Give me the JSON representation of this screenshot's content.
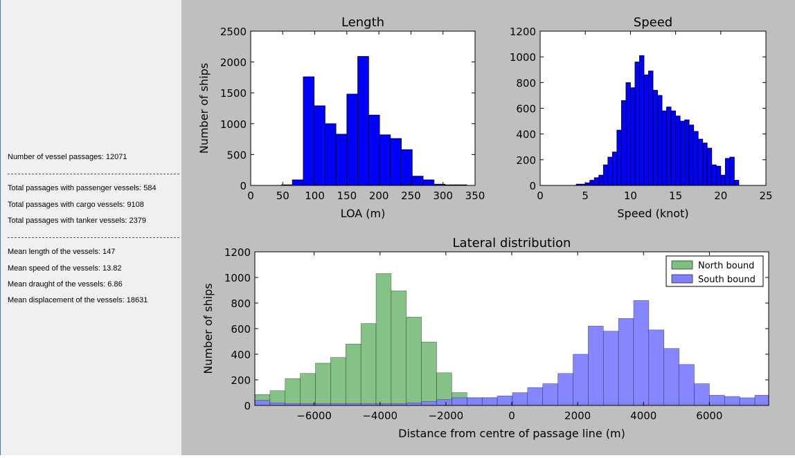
{
  "stats": {
    "passages": "Number of vessel passages: 12071",
    "separator_1": "------------------------------------------------",
    "passenger": "Total passages with passenger vessels: 584",
    "cargo": "Total passages with cargo vessels: 9108",
    "tanker": "Total passages with tanker vessels: 2379",
    "separator_2": "------------------------------------------------",
    "mean_length": "Mean length of the vessels: 147",
    "mean_speed": "Mean speed of the vessels: 13.82",
    "mean_draught": "Mean draught of the vessels: 6.86",
    "mean_displacement": "Mean displacement of the vessels: 18631"
  },
  "colors": {
    "bar_blue": "#0000ff",
    "north": "#7fbf7f",
    "south": "#7f7fff",
    "background": "#bfbfbf",
    "panel": "#f0f0f0"
  },
  "chart_data": [
    {
      "type": "bar",
      "title": "Length",
      "xlabel": "LOA (m)",
      "ylabel": "Number of ships",
      "xlim": [
        0,
        350
      ],
      "ylim": [
        0,
        2500
      ],
      "xticks": [
        0,
        50,
        100,
        150,
        200,
        250,
        300,
        350
      ],
      "yticks": [
        0,
        500,
        1000,
        1500,
        2000,
        2500
      ],
      "bin_width": 17,
      "bins": [
        {
          "x": 48,
          "value": 10
        },
        {
          "x": 65,
          "value": 90
        },
        {
          "x": 82,
          "value": 1760
        },
        {
          "x": 99,
          "value": 1290
        },
        {
          "x": 116,
          "value": 1000
        },
        {
          "x": 133,
          "value": 830
        },
        {
          "x": 150,
          "value": 1480
        },
        {
          "x": 167,
          "value": 2090
        },
        {
          "x": 184,
          "value": 1140
        },
        {
          "x": 201,
          "value": 820
        },
        {
          "x": 218,
          "value": 760
        },
        {
          "x": 235,
          "value": 580
        },
        {
          "x": 252,
          "value": 150
        },
        {
          "x": 269,
          "value": 90
        },
        {
          "x": 286,
          "value": 20
        },
        {
          "x": 303,
          "value": 10
        },
        {
          "x": 320,
          "value": 10
        }
      ],
      "grid": false
    },
    {
      "type": "bar",
      "title": "Speed",
      "xlabel": "Speed (knot)",
      "ylabel": "",
      "xlim": [
        0,
        25
      ],
      "ylim": [
        0,
        1200
      ],
      "xticks": [
        0,
        5,
        10,
        15,
        20,
        25
      ],
      "yticks": [
        0,
        200,
        400,
        600,
        800,
        1000,
        1200
      ],
      "bin_width": 0.5,
      "bins": [
        {
          "x": 4.0,
          "value": 10
        },
        {
          "x": 4.5,
          "value": 10
        },
        {
          "x": 5.0,
          "value": 20
        },
        {
          "x": 5.5,
          "value": 40
        },
        {
          "x": 6.0,
          "value": 60
        },
        {
          "x": 6.5,
          "value": 80
        },
        {
          "x": 7.0,
          "value": 160
        },
        {
          "x": 7.5,
          "value": 220
        },
        {
          "x": 8.0,
          "value": 260
        },
        {
          "x": 8.5,
          "value": 430
        },
        {
          "x": 9.0,
          "value": 660
        },
        {
          "x": 9.5,
          "value": 800
        },
        {
          "x": 10.0,
          "value": 760
        },
        {
          "x": 10.5,
          "value": 960
        },
        {
          "x": 11.0,
          "value": 1010
        },
        {
          "x": 11.5,
          "value": 860
        },
        {
          "x": 12.0,
          "value": 890
        },
        {
          "x": 12.5,
          "value": 740
        },
        {
          "x": 13.0,
          "value": 700
        },
        {
          "x": 13.5,
          "value": 580
        },
        {
          "x": 14.0,
          "value": 610
        },
        {
          "x": 14.5,
          "value": 580
        },
        {
          "x": 15.0,
          "value": 540
        },
        {
          "x": 15.5,
          "value": 500
        },
        {
          "x": 16.0,
          "value": 510
        },
        {
          "x": 16.5,
          "value": 470
        },
        {
          "x": 17.0,
          "value": 420
        },
        {
          "x": 17.5,
          "value": 360
        },
        {
          "x": 18.0,
          "value": 330
        },
        {
          "x": 18.5,
          "value": 290
        },
        {
          "x": 19.0,
          "value": 160
        },
        {
          "x": 19.5,
          "value": 150
        },
        {
          "x": 20.0,
          "value": 80
        },
        {
          "x": 20.5,
          "value": 210
        },
        {
          "x": 21.0,
          "value": 220
        },
        {
          "x": 21.5,
          "value": 40
        }
      ],
      "grid": false
    },
    {
      "type": "bar",
      "title": "Lateral distribution",
      "xlabel": "Distance from centre of passage line (m)",
      "ylabel": "Number of ships",
      "xlim": [
        -7800,
        7800
      ],
      "ylim": [
        0,
        1200
      ],
      "xticks": [
        -6000,
        -4000,
        -2000,
        0,
        2000,
        4000,
        6000
      ],
      "yticks": [
        0,
        200,
        400,
        600,
        800,
        1000,
        1200
      ],
      "bin_width": 460,
      "legend_position": "top-right",
      "bin_starts": [
        -7800,
        -7340,
        -6880,
        -6420,
        -5960,
        -5500,
        -5040,
        -4580,
        -4120,
        -3660,
        -3200,
        -2740,
        -2280,
        -1820,
        -1360,
        -900,
        -440,
        20,
        480,
        940,
        1400,
        1860,
        2320,
        2780,
        3240,
        3700,
        4160,
        4620,
        5080,
        5540,
        6000,
        6460,
        6920,
        7380
      ],
      "series": [
        {
          "name": "North bound",
          "color": "#7fbf7f",
          "values": [
            85,
            115,
            210,
            250,
            330,
            375,
            480,
            640,
            1030,
            895,
            690,
            495,
            255,
            100,
            60,
            60,
            40,
            30,
            25,
            25,
            20,
            20,
            20,
            20,
            20,
            20,
            20,
            20,
            20,
            20,
            20,
            20,
            20,
            20
          ]
        },
        {
          "name": "South bound",
          "color": "#7f7fff",
          "values": [
            40,
            20,
            15,
            15,
            15,
            15,
            15,
            15,
            15,
            15,
            20,
            30,
            45,
            60,
            60,
            60,
            75,
            100,
            140,
            170,
            250,
            400,
            620,
            580,
            680,
            820,
            590,
            445,
            320,
            170,
            80,
            70,
            60,
            80
          ]
        }
      ],
      "grid": false
    }
  ]
}
